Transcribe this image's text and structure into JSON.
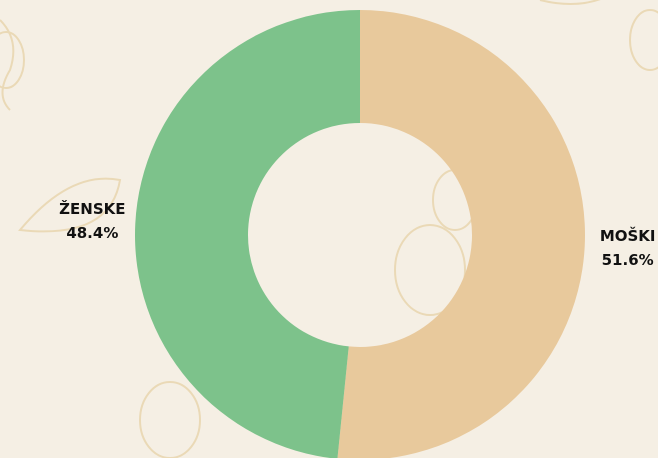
{
  "chart_data": {
    "type": "pie",
    "categories": [
      "MOŠKI",
      "ŽENSKE"
    ],
    "values": [
      51.6,
      48.4
    ],
    "value_labels": [
      "51.6%",
      "48.4%"
    ],
    "colors": [
      "#e8c99c",
      "#7dc28b"
    ],
    "donut": true
  }
}
